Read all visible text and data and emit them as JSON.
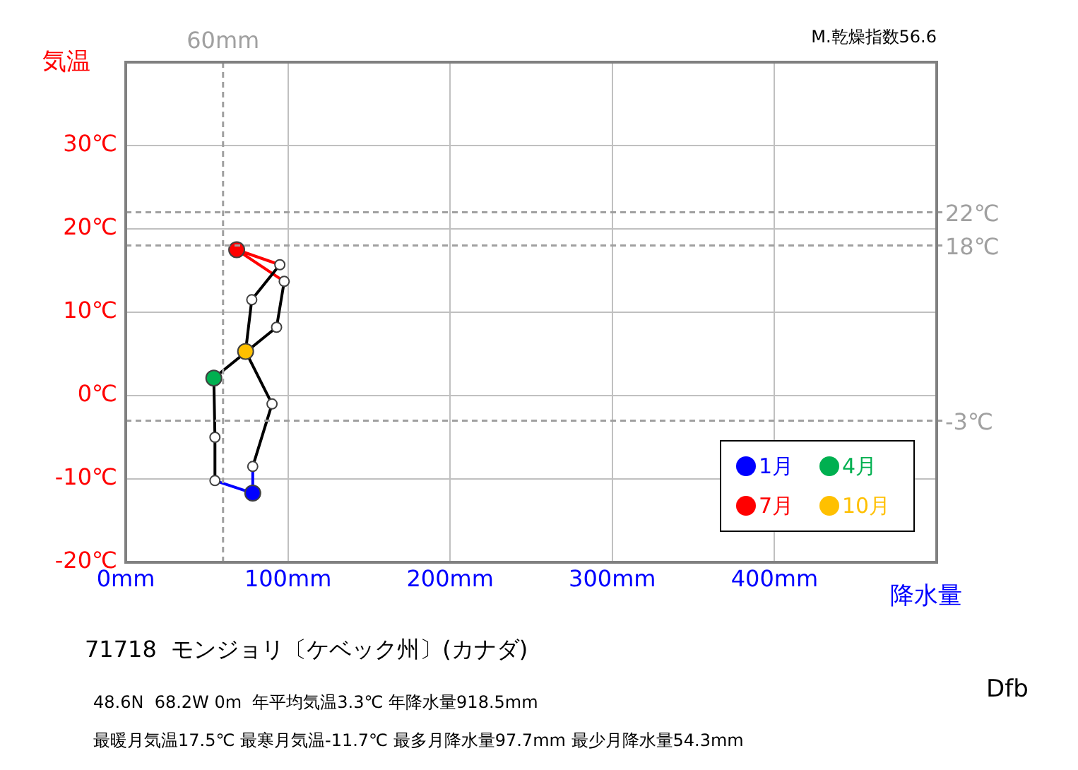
{
  "chart_data": {
    "type": "line",
    "title": "71718  モンジョリ〔ケベック州〕(カナダ)",
    "subtitle": "48.6N  68.2W 0m  年平均気温3.3℃ 年降水量918.5mm",
    "xlabel": "降水量",
    "ylabel": "気温",
    "annotations": [
      "最暖月気温17.5℃ 最寒月気温-11.7℃ 最多月降水量97.7mm 最少月降水量54.3mm",
      "Dfb",
      "M.乾燥指数56.6"
    ],
    "xlim": [
      0,
      500
    ],
    "xticks": [
      {
        "value": 0,
        "label": "0mm"
      },
      {
        "value": 100,
        "label": "100mm"
      },
      {
        "value": 200,
        "label": "200mm"
      },
      {
        "value": 300,
        "label": "300mm"
      },
      {
        "value": 400,
        "label": "400mm"
      }
    ],
    "ylim": [
      -20,
      40
    ],
    "yticks": [
      {
        "value": -20,
        "label": "-20℃"
      },
      {
        "value": -10,
        "label": "-10℃"
      },
      {
        "value": 0,
        "label": "0℃"
      },
      {
        "value": 10,
        "label": "10℃"
      },
      {
        "value": 20,
        "label": "20℃"
      },
      {
        "value": 30,
        "label": "30℃"
      }
    ],
    "grid": true,
    "legend": "bottom right",
    "ref_lines": [
      {
        "axis": "y",
        "value": 22,
        "label": "22℃",
        "color": "#a0a0a0",
        "line_style": "dashed"
      },
      {
        "axis": "y",
        "value": 18,
        "label": "18℃",
        "color": "#a0a0a0",
        "line_style": "dashed"
      },
      {
        "axis": "y",
        "value": -3,
        "label": "-3℃",
        "color": "#a0a0a0",
        "line_style": "dashed"
      },
      {
        "axis": "x",
        "value": 60,
        "label": "60mm",
        "color": "#a0a0a0",
        "line_style": "dashed"
      }
    ],
    "series": [
      {
        "color": "#000000",
        "x": [
          55,
          55,
          54.3,
          93,
          97.7
        ],
        "values": [
          -10.2,
          -5.0,
          2.1,
          8.2,
          13.7
        ],
        "marker": "none"
      },
      {
        "color": "#000000",
        "x": [
          95,
          77.7,
          73.9,
          90.2,
          78.3
        ],
        "values": [
          15.7,
          11.5,
          5.3,
          -1.0,
          -8.5
        ],
        "marker": "none"
      },
      {
        "color": "#0000ff",
        "x": [
          78.3,
          78.3,
          55
        ],
        "values": [
          -8.5,
          -11.7,
          -10.2
        ],
        "marker": "none"
      },
      {
        "color": "#ff0000",
        "x": [
          97.7,
          68.4,
          95
        ],
        "values": [
          13.7,
          17.5,
          15.7
        ],
        "marker": "none"
      },
      {
        "type": "scatter",
        "color": "#ffffff",
        "x": [
          55,
          55,
          93,
          97.7,
          95,
          77.7,
          90.2,
          78.3
        ],
        "values": [
          -10.2,
          -5.0,
          8.2,
          13.7,
          15.7,
          11.5,
          -1.0,
          -8.5
        ],
        "marker": "circle"
      },
      {
        "type": "scatter",
        "name": "1月",
        "color": "#0000ff",
        "x": [
          78.3
        ],
        "values": [
          -11.7
        ],
        "marker": "circle"
      },
      {
        "type": "scatter",
        "name": "4月",
        "color": "#00b050",
        "x": [
          54.3
        ],
        "values": [
          2.1
        ],
        "marker": "circle"
      },
      {
        "type": "scatter",
        "name": "7月",
        "color": "#ff0000",
        "x": [
          68.4
        ],
        "values": [
          17.5
        ],
        "marker": "circle"
      },
      {
        "type": "scatter",
        "name": "10月",
        "color": "#ffc000",
        "x": [
          73.9
        ],
        "values": [
          5.3
        ],
        "marker": "circle"
      }
    ]
  }
}
